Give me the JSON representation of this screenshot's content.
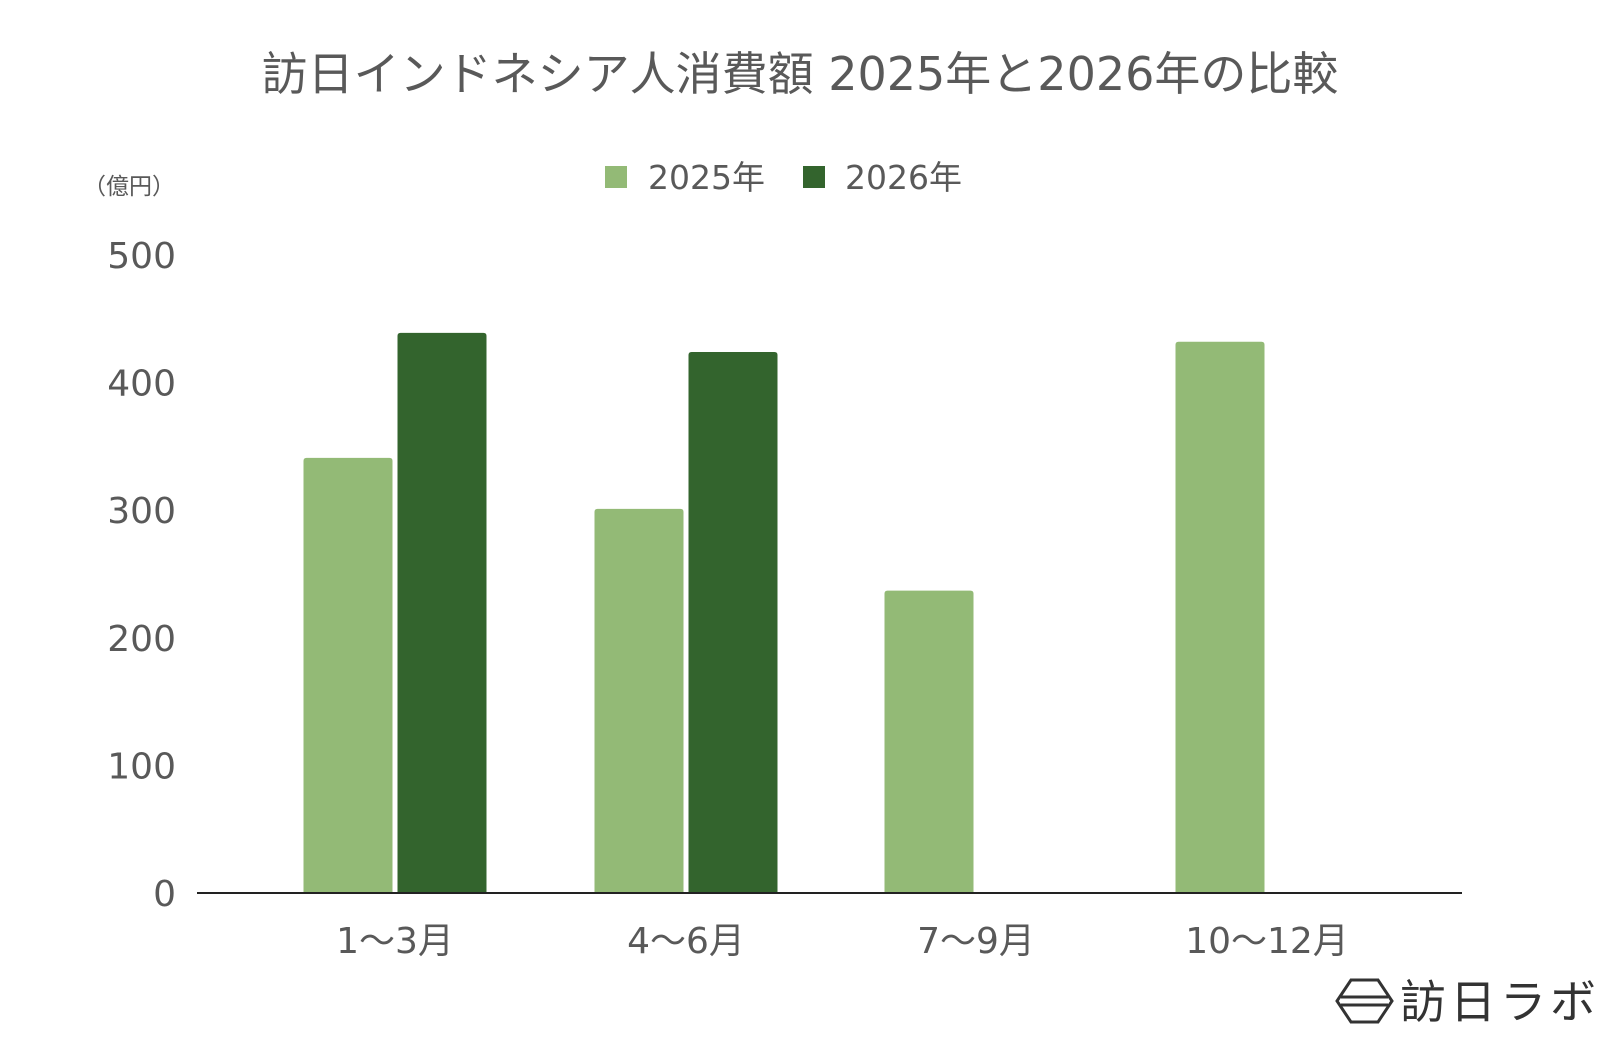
{
  "chart_data": {
    "type": "bar",
    "title": "訪日インドネシア人消費額 2025年と2026年の比較",
    "ylabel": "（億円）",
    "xlabel": "",
    "categories": [
      "1～3月",
      "4～6月",
      "7～9月",
      "10～12月"
    ],
    "series": [
      {
        "name": "2025年",
        "color": "#93BA76",
        "values": [
          341,
          301,
          237,
          432
        ]
      },
      {
        "name": "2026年",
        "color": "#33642D",
        "values": [
          439,
          424,
          null,
          null
        ]
      }
    ],
    "ylim": [
      0,
      500
    ],
    "yticks": [
      0,
      100,
      200,
      300,
      400,
      500
    ],
    "legend_position": "top",
    "grid": false
  },
  "logo": {
    "text": "訪日ラボ",
    "icon": "hexagon-logo-icon"
  }
}
